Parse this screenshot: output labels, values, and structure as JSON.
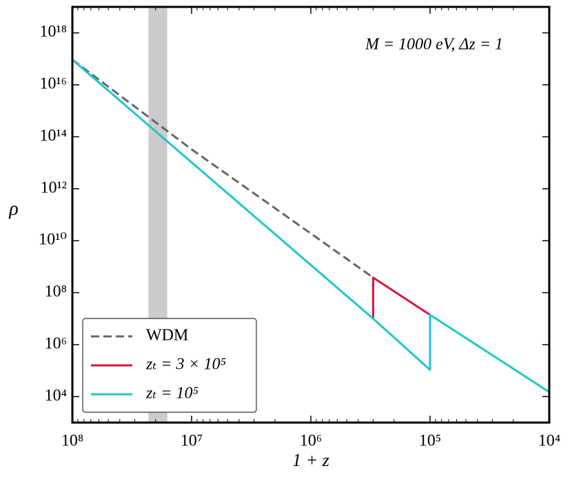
{
  "chart_data": {
    "type": "line",
    "annotation": "M = 1000 eV, Δz = 1",
    "x_label": "1 + z",
    "y_label": "ρ",
    "log_x": true,
    "log_y": true,
    "x_reversed": true,
    "xlim": [
      100000000,
      10000
    ],
    "ylim": [
      1000,
      10000000000000000000
    ],
    "xticks": [
      {
        "value": 100000000,
        "label": "10⁸"
      },
      {
        "value": 10000000,
        "label": "10⁷"
      },
      {
        "value": 1000000,
        "label": "10⁶"
      },
      {
        "value": 100000,
        "label": "10⁵"
      },
      {
        "value": 10000,
        "label": "10⁴"
      }
    ],
    "yticks": [
      {
        "value": 10000,
        "label": "10⁴"
      },
      {
        "value": 1000000,
        "label": "10⁶"
      },
      {
        "value": 100000000,
        "label": "10⁸"
      },
      {
        "value": 10000000000,
        "label": "10¹⁰"
      },
      {
        "value": 1000000000000,
        "label": "10¹²"
      },
      {
        "value": 100000000000000,
        "label": "10¹⁴"
      },
      {
        "value": 10000000000000000,
        "label": "10¹⁶"
      },
      {
        "value": 1000000000000000000,
        "label": "10¹⁸"
      }
    ],
    "x_minor_ticks": true,
    "shaded_span": {
      "x": [
        16000000,
        23000000
      ],
      "color": "#cccccc"
    },
    "legend": "lower left",
    "series": [
      {
        "name": "WDM",
        "color": "#666666",
        "dashed": true,
        "x": [
          100000000,
          10000000,
          1000000,
          300000
        ],
        "values": [
          93000000000000000,
          33000000000000,
          19000000000,
          380000000
        ]
      },
      {
        "name": "zₜ = 3 × 10⁵",
        "color": "#dc143c",
        "dashed": false,
        "x": [
          300000,
          300000,
          100000
        ],
        "values": [
          10000000,
          380000000,
          14000000
        ]
      },
      {
        "name": "zₜ = 10⁵",
        "color": "#1fc6cc",
        "dashed": false,
        "x": [
          100000000,
          300000,
          100000,
          100000,
          10000
        ],
        "values": [
          93000000000000000,
          10000000,
          107000,
          14000000,
          15000
        ]
      }
    ]
  }
}
